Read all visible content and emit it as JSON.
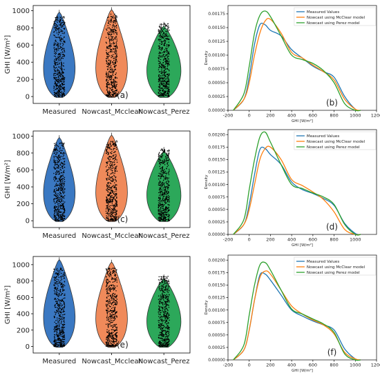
{
  "colors": {
    "measured": "#3a78c2",
    "mcclear": "#f08a5a",
    "perez": "#2ca85a",
    "kde_measured": "#1f77b4",
    "kde_mcclear": "#ff7f0e",
    "kde_perez": "#2ca02c",
    "points": "#000000"
  },
  "chart_data": [
    {
      "type": "violin",
      "panel": "(a)",
      "ylabel": "GHI [W/m²]",
      "ylim": [
        -80,
        1060
      ],
      "yticks": [
        0,
        200,
        400,
        600,
        800,
        1000
      ],
      "categories": [
        "Measured",
        "Nowcast_Mcclear",
        "Nowcast_Perez"
      ],
      "series": [
        {
          "name": "Measured",
          "min": -10,
          "max": 1010,
          "jitter": [
            0,
            940
          ]
        },
        {
          "name": "Nowcast_Mcclear",
          "min": -10,
          "max": 1040,
          "jitter": [
            0,
            960
          ]
        },
        {
          "name": "Nowcast_Perez",
          "min": -10,
          "max": 870,
          "jitter": [
            0,
            850
          ]
        }
      ]
    },
    {
      "type": "line",
      "panel": "(b)",
      "xlabel": "GHI [W/m²]",
      "ylabel": "Density",
      "xlim": [
        -200,
        1200
      ],
      "ylim": [
        0,
        0.0019
      ],
      "xticks": [
        -200,
        0,
        200,
        400,
        600,
        800,
        1000,
        1200
      ],
      "yticks": [
        "0.00000",
        "0.00025",
        "0.00050",
        "0.00075",
        "0.00100",
        "0.00125",
        "0.00150",
        "0.00175"
      ],
      "legend": [
        "Measured Values",
        "Nowcast using McClear model",
        "Nowcast using Perez model"
      ],
      "series": [
        {
          "x": [
            -150,
            -50,
            0,
            50,
            100,
            150,
            200,
            300,
            400,
            500,
            600,
            700,
            800,
            900,
            1000,
            1050
          ],
          "y": [
            0,
            0.0002,
            0.0006,
            0.0012,
            0.00155,
            0.00155,
            0.00145,
            0.00135,
            0.0011,
            0.00095,
            0.0008,
            0.0007,
            0.0006,
            0.00025,
            2e-05,
            0
          ]
        },
        {
          "x": [
            -150,
            -50,
            0,
            50,
            100,
            150,
            200,
            300,
            400,
            500,
            600,
            700,
            800,
            900,
            1000,
            1050
          ],
          "y": [
            0,
            0.0002,
            0.0005,
            0.001,
            0.0014,
            0.00162,
            0.00165,
            0.0014,
            0.00105,
            0.00095,
            0.00082,
            0.0007,
            0.00055,
            0.0002,
            2e-05,
            0
          ]
        },
        {
          "x": [
            -150,
            -50,
            0,
            50,
            100,
            150,
            200,
            300,
            400,
            500,
            600,
            700,
            800,
            900,
            1000,
            1050
          ],
          "y": [
            0,
            0.0003,
            0.0008,
            0.0014,
            0.00172,
            0.0018,
            0.0017,
            0.00135,
            0.001,
            0.00092,
            0.00085,
            0.00072,
            0.0005,
            0.00012,
            0,
            0
          ]
        }
      ]
    },
    {
      "type": "violin",
      "panel": "(c)",
      "ylabel": "GHI [W/m²]",
      "ylim": [
        -80,
        1060
      ],
      "yticks": [
        0,
        200,
        400,
        600,
        800,
        1000
      ],
      "categories": [
        "Measured",
        "Nowcast_Mcclear",
        "Nowcast_Perez"
      ],
      "series": [
        {
          "name": "Measured",
          "min": -10,
          "max": 1010,
          "jitter": [
            0,
            920
          ]
        },
        {
          "name": "Nowcast_Mcclear",
          "min": -10,
          "max": 1040,
          "jitter": [
            0,
            950
          ]
        },
        {
          "name": "Nowcast_Perez",
          "min": -10,
          "max": 870,
          "jitter": [
            0,
            850
          ]
        }
      ]
    },
    {
      "type": "line",
      "panel": "(d)",
      "xlabel": "GHI [W/m²]",
      "ylabel": "Density",
      "xlim": [
        -200,
        1200
      ],
      "ylim": [
        0,
        0.0021
      ],
      "xticks": [
        -200,
        0,
        200,
        400,
        600,
        800,
        1000
      ],
      "yticks": [
        "0.00000",
        "0.00025",
        "0.00050",
        "0.00075",
        "0.00100",
        "0.00125",
        "0.00150",
        "0.00175",
        "0.00200"
      ],
      "legend": [
        "Measured Values",
        "Nowcast using McClear model",
        "Nowcast using Perez model"
      ],
      "series": [
        {
          "x": [
            -150,
            -50,
            0,
            50,
            100,
            150,
            200,
            300,
            400,
            500,
            600,
            700,
            800,
            900,
            1000,
            1050
          ],
          "y": [
            0,
            0.0002,
            0.0006,
            0.0012,
            0.0017,
            0.00172,
            0.0016,
            0.0014,
            0.00105,
            0.0009,
            0.00082,
            0.00072,
            0.00058,
            0.00022,
            2e-05,
            0
          ]
        },
        {
          "x": [
            -150,
            -50,
            0,
            50,
            100,
            150,
            200,
            300,
            400,
            500,
            600,
            700,
            800,
            900,
            1000,
            1050
          ],
          "y": [
            0,
            0.0002,
            0.0005,
            0.001,
            0.0015,
            0.00172,
            0.00175,
            0.0015,
            0.0011,
            0.00098,
            0.00085,
            0.0007,
            0.00045,
            0.0001,
            0,
            0
          ]
        },
        {
          "x": [
            -150,
            -50,
            0,
            50,
            100,
            150,
            200,
            300,
            400,
            500,
            600,
            700,
            800,
            900,
            1000,
            1050
          ],
          "y": [
            0,
            0.0003,
            0.0009,
            0.0015,
            0.00195,
            0.00205,
            0.00185,
            0.0014,
            0.001,
            0.00092,
            0.00083,
            0.00075,
            0.0006,
            0.0002,
            0,
            0
          ]
        }
      ]
    },
    {
      "type": "violin",
      "panel": "(e)",
      "ylabel": "GHI [W/m²]",
      "ylim": [
        -80,
        1100
      ],
      "yticks": [
        0,
        200,
        400,
        600,
        800,
        1000
      ],
      "categories": [
        "Measured",
        "Nowcast_Mcclear",
        "Nowcast_Perez"
      ],
      "series": [
        {
          "name": "Measured",
          "min": -10,
          "max": 1090,
          "jitter": [
            0,
            960
          ]
        },
        {
          "name": "Nowcast_Mcclear",
          "min": -10,
          "max": 1060,
          "jitter": [
            0,
            960
          ]
        },
        {
          "name": "Nowcast_Perez",
          "min": -10,
          "max": 880,
          "jitter": [
            0,
            860
          ]
        }
      ]
    },
    {
      "type": "line",
      "panel": "(f)",
      "xlabel": "GHI [W/m²]",
      "ylabel": "Density",
      "xlim": [
        -200,
        1200
      ],
      "ylim": [
        0,
        0.0021
      ],
      "xticks": [
        -200,
        0,
        200,
        400,
        600,
        800,
        1000,
        1200
      ],
      "yticks": [
        "0.00000",
        "0.00025",
        "0.00050",
        "0.00075",
        "0.00100",
        "0.00125",
        "0.00150",
        "0.00175",
        "0.00200"
      ],
      "legend": [
        "Measured Values",
        "Nowcast using McClear model",
        "Nowcast using Perez model"
      ],
      "series": [
        {
          "x": [
            -150,
            -50,
            0,
            50,
            100,
            150,
            200,
            300,
            400,
            500,
            600,
            700,
            800,
            900,
            1000,
            1050
          ],
          "y": [
            0,
            0.0002,
            0.0006,
            0.0012,
            0.0017,
            0.00172,
            0.0016,
            0.0013,
            0.001,
            0.00088,
            0.00078,
            0.0007,
            0.0006,
            0.00022,
            2e-05,
            0
          ]
        },
        {
          "x": [
            -150,
            -50,
            0,
            50,
            100,
            150,
            200,
            300,
            400,
            500,
            600,
            700,
            800,
            900,
            1000,
            1050
          ],
          "y": [
            0,
            0.0002,
            0.0006,
            0.0012,
            0.00165,
            0.00178,
            0.00172,
            0.0014,
            0.00108,
            0.00092,
            0.0008,
            0.0007,
            0.00052,
            0.00015,
            2e-05,
            0
          ]
        },
        {
          "x": [
            -150,
            -50,
            0,
            50,
            100,
            150,
            200,
            300,
            400,
            500,
            600,
            700,
            800,
            900,
            1000,
            1050
          ],
          "y": [
            0,
            0.0003,
            0.0009,
            0.0015,
            0.0019,
            0.00195,
            0.0018,
            0.0014,
            0.00102,
            0.00092,
            0.00082,
            0.00072,
            0.00055,
            0.00012,
            0,
            0
          ]
        }
      ]
    }
  ]
}
